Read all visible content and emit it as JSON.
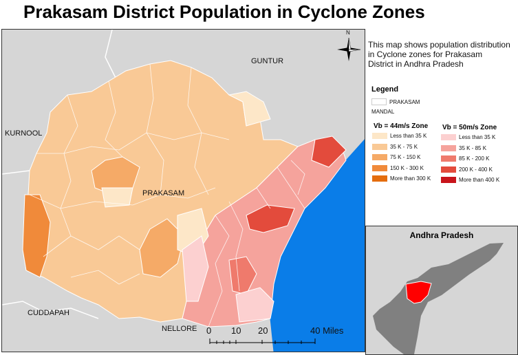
{
  "title": "Prakasam District Population in Cyclone Zones",
  "description": [
    "This map shows population distribution",
    "in Cyclone zones for Prakasam",
    "District in Andhra Pradesh"
  ],
  "map_labels": {
    "guntur": "GUNTUR",
    "kurnool": "KURNOOL",
    "prakasam": "PRAKASAM",
    "cuddapah": "CUDDAPAH",
    "nellore": "NELLORE",
    "north": "N"
  },
  "legend": {
    "title": "Legend",
    "district_label": "PRAKASAM",
    "mandal_label": "MANDAL",
    "zone44": {
      "title": "Vb = 44m/s Zone",
      "classes": [
        {
          "label": "Less than 35 K",
          "color": "#fde7c8"
        },
        {
          "label": "35 K - 75 K",
          "color": "#f9c996"
        },
        {
          "label": "75 K - 150 K",
          "color": "#f5aa67"
        },
        {
          "label": "150 K - 300 K",
          "color": "#f08a3a"
        },
        {
          "label": "More than 300 K",
          "color": "#e46d0e"
        }
      ]
    },
    "zone50": {
      "title": "Vb = 50m/s Zone",
      "classes": [
        {
          "label": "Less than 35 K",
          "color": "#fcd0d0"
        },
        {
          "label": "35 K - 85 K",
          "color": "#f5a39c"
        },
        {
          "label": "85 K - 200 K",
          "color": "#ef7a6c"
        },
        {
          "label": "200 K - 400 K",
          "color": "#e34b3c"
        },
        {
          "label": "More than 400 K",
          "color": "#c8141b"
        }
      ]
    }
  },
  "inset": {
    "title": "Andhra Pradesh"
  },
  "scale": {
    "ticks": [
      "0",
      "10",
      "20",
      "40 Miles"
    ]
  },
  "colors": {
    "sea": "#0a7de8",
    "neighbor": "#d6d6d6",
    "district_border": "#ffffff",
    "inset_state": "#808080",
    "inset_highlight": "#ff0000"
  }
}
